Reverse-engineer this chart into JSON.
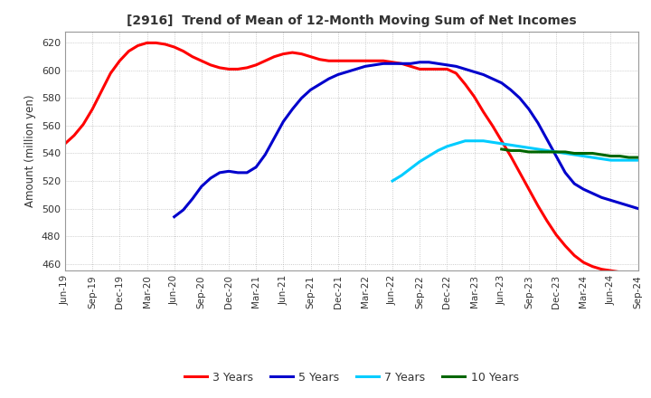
{
  "title": "[2916]  Trend of Mean of 12-Month Moving Sum of Net Incomes",
  "ylabel": "Amount (million yen)",
  "ylim": [
    455,
    628
  ],
  "yticks": [
    460,
    480,
    500,
    520,
    540,
    560,
    580,
    600,
    620
  ],
  "background_color": "#ffffff",
  "grid_color": "#aaaaaa",
  "series": {
    "3years": {
      "color": "#ff0000",
      "label": "3 Years",
      "x": [
        0,
        1,
        2,
        3,
        4,
        5,
        6,
        7,
        8,
        9,
        10,
        11,
        12,
        13,
        14,
        15,
        16,
        17,
        18,
        19,
        20,
        21,
        22,
        23,
        24,
        25,
        26,
        27,
        28,
        29,
        30,
        31,
        32,
        33,
        34,
        35,
        36,
        37,
        38,
        39,
        40,
        41,
        42,
        43,
        44,
        45,
        46,
        47,
        48,
        49,
        50,
        51,
        52,
        53,
        54,
        55,
        56,
        57,
        58,
        59,
        60,
        61,
        62,
        63
      ],
      "y": [
        547,
        553,
        561,
        572,
        585,
        598,
        607,
        614,
        618,
        620,
        620,
        619,
        617,
        614,
        610,
        607,
        604,
        602,
        601,
        601,
        602,
        604,
        607,
        610,
        612,
        613,
        612,
        610,
        608,
        607,
        607,
        607,
        607,
        607,
        607,
        607,
        606,
        605,
        603,
        601,
        601,
        601,
        601,
        598,
        590,
        581,
        570,
        560,
        549,
        538,
        526,
        514,
        502,
        491,
        481,
        473,
        466,
        461,
        458,
        456,
        455,
        454,
        453,
        452
      ]
    },
    "5years": {
      "color": "#0000cc",
      "label": "5 Years",
      "x": [
        12,
        13,
        14,
        15,
        16,
        17,
        18,
        19,
        20,
        21,
        22,
        23,
        24,
        25,
        26,
        27,
        28,
        29,
        30,
        31,
        32,
        33,
        34,
        35,
        36,
        37,
        38,
        39,
        40,
        41,
        42,
        43,
        44,
        45,
        46,
        47,
        48,
        49,
        50,
        51,
        52,
        53,
        54,
        55,
        56,
        57,
        58,
        59,
        60,
        61,
        62,
        63
      ],
      "y": [
        494,
        499,
        507,
        516,
        522,
        526,
        527,
        526,
        526,
        530,
        539,
        551,
        563,
        572,
        580,
        586,
        590,
        594,
        597,
        599,
        601,
        603,
        604,
        605,
        605,
        605,
        605,
        606,
        606,
        605,
        604,
        603,
        601,
        599,
        597,
        594,
        591,
        586,
        580,
        572,
        562,
        550,
        538,
        526,
        518,
        514,
        511,
        508,
        506,
        504,
        502,
        500
      ]
    },
    "7years": {
      "color": "#00ccff",
      "label": "7 Years",
      "x": [
        36,
        37,
        38,
        39,
        40,
        41,
        42,
        43,
        44,
        45,
        46,
        47,
        48,
        49,
        50,
        51,
        52,
        53,
        54,
        55,
        56,
        57,
        58,
        59,
        60,
        61,
        62,
        63
      ],
      "y": [
        520,
        524,
        529,
        534,
        538,
        542,
        545,
        547,
        549,
        549,
        549,
        548,
        547,
        546,
        545,
        544,
        543,
        542,
        541,
        540,
        539,
        538,
        537,
        536,
        535,
        535,
        535,
        535
      ]
    },
    "10years": {
      "color": "#006600",
      "label": "10 Years",
      "x": [
        48,
        49,
        50,
        51,
        52,
        53,
        54,
        55,
        56,
        57,
        58,
        59,
        60,
        61,
        62,
        63
      ],
      "y": [
        543,
        542,
        542,
        541,
        541,
        541,
        541,
        541,
        540,
        540,
        540,
        539,
        538,
        538,
        537,
        537
      ]
    }
  },
  "x_tick_labels": [
    "Jun-19",
    "Sep-19",
    "Dec-19",
    "Mar-20",
    "Jun-20",
    "Sep-20",
    "Dec-20",
    "Mar-21",
    "Jun-21",
    "Sep-21",
    "Dec-21",
    "Mar-22",
    "Jun-22",
    "Sep-22",
    "Dec-22",
    "Mar-23",
    "Jun-23",
    "Sep-23",
    "Dec-23",
    "Mar-24",
    "Jun-24",
    "Sep-24"
  ],
  "x_tick_positions": [
    0,
    3,
    6,
    9,
    12,
    15,
    18,
    21,
    24,
    27,
    30,
    33,
    36,
    39,
    42,
    45,
    48,
    51,
    54,
    57,
    60,
    63
  ]
}
